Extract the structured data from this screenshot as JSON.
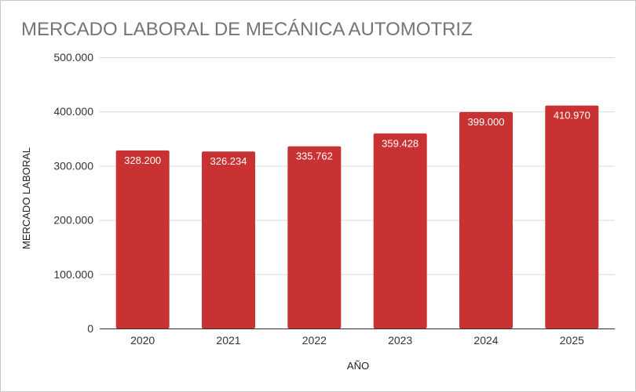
{
  "chart_data": {
    "type": "bar",
    "title": "MERCADO LABORAL DE MECÁNICA AUTOMOTRIZ",
    "xlabel": "AÑO",
    "ylabel": "MERCADO LABORAL",
    "categories": [
      "2020",
      "2021",
      "2022",
      "2023",
      "2024",
      "2025"
    ],
    "values": [
      328200,
      326234,
      335762,
      359428,
      399000,
      410970
    ],
    "value_labels": [
      "328.200",
      "326.234",
      "335.762",
      "359.428",
      "399.000",
      "410.970"
    ],
    "ylim": [
      0,
      500000
    ],
    "yticks": [
      0,
      100000,
      200000,
      300000,
      400000,
      500000
    ],
    "ytick_labels": [
      "0",
      "100.000",
      "200.000",
      "300.000",
      "400.000",
      "500.000"
    ],
    "grid": true,
    "legend": "none",
    "bar_color": "#c83232"
  }
}
